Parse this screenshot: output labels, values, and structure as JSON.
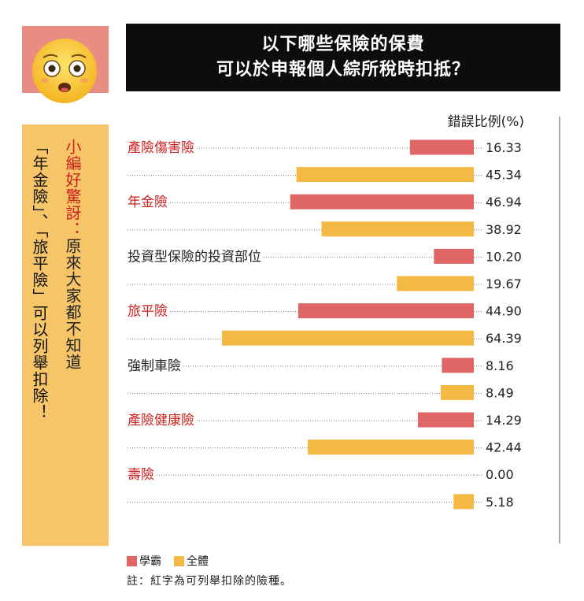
{
  "side_panel": {
    "prefix": "小編好驚訝：",
    "line1_rest": "原來大家都不知道",
    "line2": "「年金險」、「旅平險」可以列舉扣除！"
  },
  "colors": {
    "top_student": "#e06666",
    "overall": "#f4b942",
    "deductible_label": "#cc1f1f",
    "panel_top": "#e98d84",
    "panel_body": "#f6c567"
  },
  "icons": [
    "shocked-face-icon"
  ],
  "chart_data": {
    "type": "bar",
    "orientation": "horizontal",
    "title_lines": [
      "以下哪些保險的保費",
      "可以於申報個人綜所稅時扣抵？"
    ],
    "value_header": "錯誤比例(%)",
    "categories": [
      "產險傷害險",
      "年金險",
      "投資型保險的投資部位",
      "旅平險",
      "強制車險",
      "產險健康險",
      "壽險"
    ],
    "deductible": [
      true,
      true,
      false,
      true,
      false,
      true,
      true
    ],
    "series": [
      {
        "name": "學霸",
        "values": [
          16.33,
          46.94,
          10.2,
          44.9,
          8.16,
          14.29,
          0.0
        ]
      },
      {
        "name": "全體",
        "values": [
          45.34,
          38.92,
          19.67,
          64.39,
          8.49,
          42.44,
          5.18
        ]
      }
    ],
    "value_labels": [
      [
        "16.33",
        "46.94",
        "10.20",
        "44.90",
        "8.16",
        "14.29",
        "0.00"
      ],
      [
        "45.34",
        "38.92",
        "19.67",
        "64.39",
        "8.49",
        "42.44",
        "5.18"
      ]
    ],
    "xlim": [
      0,
      70
    ],
    "legend": [
      "學霸",
      "全體"
    ],
    "legend_position": "bottom-left",
    "note": "註：紅字為可列舉扣除的險種。"
  }
}
